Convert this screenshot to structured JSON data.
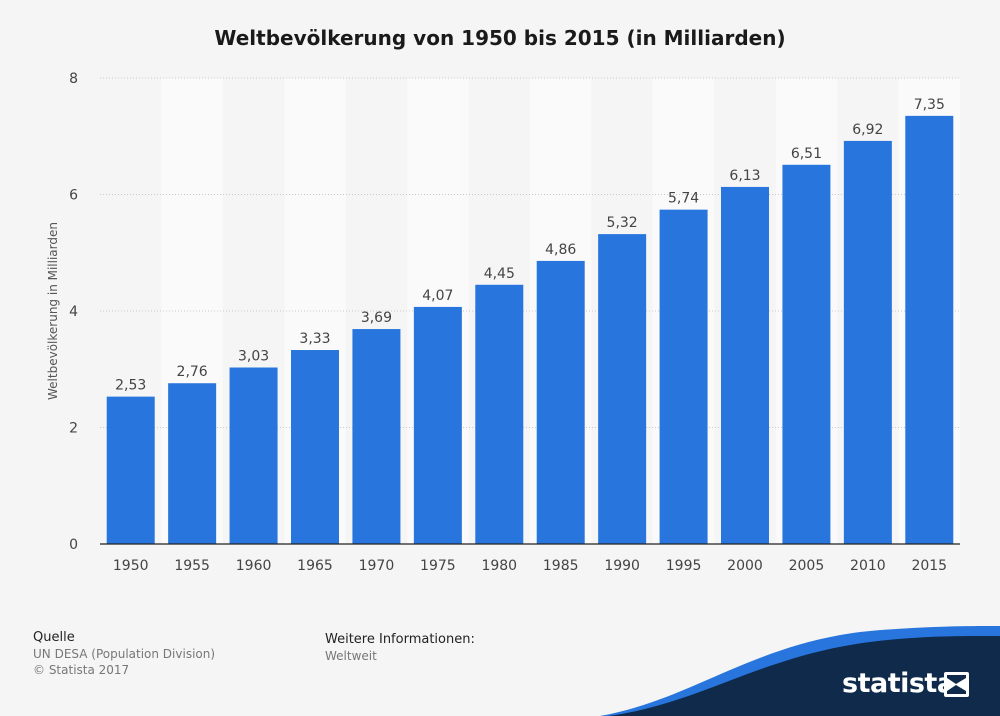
{
  "chart_data": {
    "type": "bar",
    "title": "Weltbevölkerung von 1950 bis 2015 (in Milliarden)",
    "ylabel": "Weltbevölkerung in Milliarden",
    "xlabel": "",
    "categories": [
      "1950",
      "1955",
      "1960",
      "1965",
      "1970",
      "1975",
      "1980",
      "1985",
      "1990",
      "1995",
      "2000",
      "2005",
      "2010",
      "2015"
    ],
    "values": [
      2.53,
      2.76,
      3.03,
      3.33,
      3.69,
      4.07,
      4.45,
      4.86,
      5.32,
      5.74,
      6.13,
      6.51,
      6.92,
      7.35
    ],
    "value_labels": [
      "2,53",
      "2,76",
      "3,03",
      "3,33",
      "3,69",
      "4,07",
      "4,45",
      "4,86",
      "5,32",
      "5,74",
      "6,13",
      "6,51",
      "6,92",
      "7,35"
    ],
    "ylim": [
      0,
      8
    ],
    "yticks": [
      0,
      2,
      4,
      6,
      8
    ],
    "grid": true,
    "bar_color": "#2876dd"
  },
  "footer": {
    "source_heading": "Quelle",
    "source_text": "UN DESA (Population Division)",
    "copyright": "© Statista 2017",
    "info_heading": "Weitere Informationen:",
    "info_text": "Weltweit"
  },
  "brand": {
    "name": "statista",
    "icon": "statista-logo-icon",
    "color": "#0f2a4a"
  }
}
